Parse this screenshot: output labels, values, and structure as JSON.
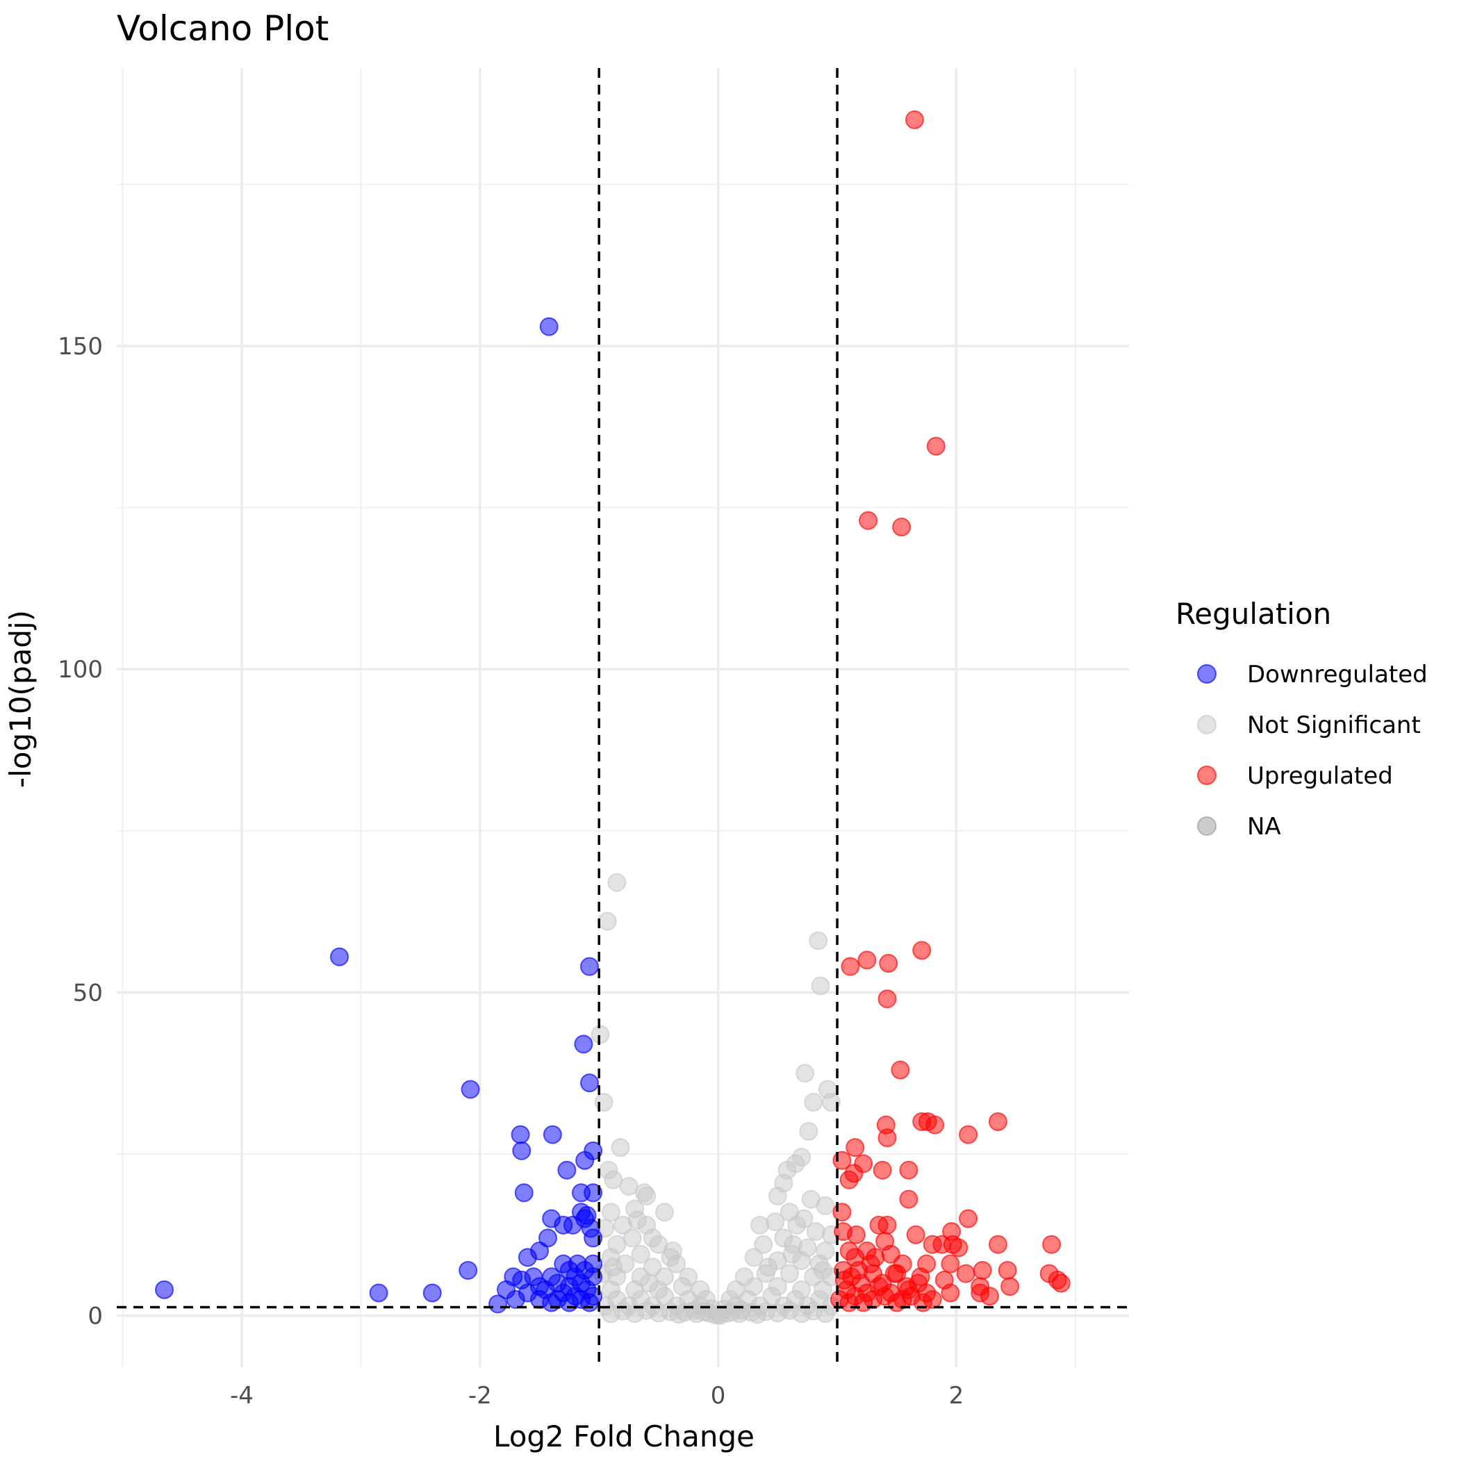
{
  "chart_data": {
    "type": "scatter",
    "title": "Volcano Plot",
    "xlabel": "Log2 Fold Change",
    "ylabel": "-log10(padj)",
    "xlim": [
      -5.05,
      3.45
    ],
    "ylim": [
      -8,
      193
    ],
    "x_ticks": [
      -4,
      -2,
      0,
      2
    ],
    "y_ticks": [
      0,
      50,
      100,
      150
    ],
    "grid": true,
    "vlines": [
      -1,
      1
    ],
    "hline": 1.3,
    "legend": {
      "title": "Regulation",
      "position": "right",
      "entries": [
        {
          "label": "Downregulated",
          "color": "#0000ff"
        },
        {
          "label": "Not Significant",
          "color": "#c8c8c8"
        },
        {
          "label": "Upregulated",
          "color": "#ff0000"
        },
        {
          "label": "NA",
          "color": "#999999"
        }
      ]
    },
    "series": [
      {
        "name": "Downregulated",
        "color": "#0000ff",
        "points": [
          [
            -1.42,
            153
          ],
          [
            -3.18,
            55.5
          ],
          [
            -1.08,
            54
          ],
          [
            -1.13,
            42
          ],
          [
            -1.08,
            36
          ],
          [
            -2.08,
            35
          ],
          [
            -1.66,
            28
          ],
          [
            -1.39,
            28
          ],
          [
            -1.65,
            25.5
          ],
          [
            -1.05,
            25.5
          ],
          [
            -1.12,
            24
          ],
          [
            -1.27,
            22.5
          ],
          [
            -1.63,
            19
          ],
          [
            -1.15,
            19
          ],
          [
            -1.05,
            19
          ],
          [
            -1.15,
            16
          ],
          [
            -1.1,
            15.5
          ],
          [
            -1.4,
            15
          ],
          [
            -1.12,
            15
          ],
          [
            -1.3,
            14
          ],
          [
            -1.22,
            14
          ],
          [
            -1.07,
            13.5
          ],
          [
            -1.43,
            12
          ],
          [
            -1.05,
            12
          ],
          [
            -1.5,
            10
          ],
          [
            -1.6,
            9
          ],
          [
            -1.3,
            8
          ],
          [
            -1.18,
            8
          ],
          [
            -1.05,
            8
          ],
          [
            -2.1,
            7
          ],
          [
            -1.25,
            7
          ],
          [
            -1.12,
            7
          ],
          [
            -1.72,
            6
          ],
          [
            -1.55,
            6
          ],
          [
            -1.4,
            6
          ],
          [
            -1.2,
            6
          ],
          [
            -1.05,
            6
          ],
          [
            -1.65,
            5.5
          ],
          [
            -1.35,
            5
          ],
          [
            -1.15,
            5
          ],
          [
            -1.5,
            4.5
          ],
          [
            -1.25,
            4.5
          ],
          [
            -4.65,
            4
          ],
          [
            -1.78,
            4
          ],
          [
            -1.45,
            4
          ],
          [
            -1.1,
            4
          ],
          [
            -1.6,
            3.5
          ],
          [
            -2.85,
            3.5
          ],
          [
            -2.4,
            3.5
          ],
          [
            -1.3,
            3.5
          ],
          [
            -1.2,
            3
          ],
          [
            -1.05,
            3
          ],
          [
            -1.7,
            2.5
          ],
          [
            -1.5,
            2.5
          ],
          [
            -1.35,
            2.5
          ],
          [
            -1.15,
            2.5
          ],
          [
            -1.85,
            1.8
          ],
          [
            -1.25,
            2
          ],
          [
            -1.08,
            2
          ],
          [
            -1.4,
            2
          ]
        ]
      },
      {
        "name": "Upregulated",
        "color": "#ff0000",
        "points": [
          [
            1.65,
            185
          ],
          [
            1.83,
            134.5
          ],
          [
            1.26,
            123
          ],
          [
            1.54,
            122
          ],
          [
            1.71,
            56.5
          ],
          [
            1.25,
            55
          ],
          [
            1.43,
            54.5
          ],
          [
            1.11,
            54
          ],
          [
            1.42,
            49
          ],
          [
            1.53,
            38
          ],
          [
            2.35,
            30
          ],
          [
            1.71,
            30
          ],
          [
            1.76,
            30
          ],
          [
            1.82,
            29.5
          ],
          [
            1.41,
            29.5
          ],
          [
            2.1,
            28
          ],
          [
            1.42,
            27.5
          ],
          [
            1.15,
            26
          ],
          [
            1.04,
            24
          ],
          [
            1.22,
            23.5
          ],
          [
            1.38,
            22.5
          ],
          [
            1.6,
            22.5
          ],
          [
            1.14,
            22
          ],
          [
            1.1,
            21
          ],
          [
            1.6,
            18
          ],
          [
            1.04,
            16
          ],
          [
            2.1,
            15
          ],
          [
            1.35,
            14
          ],
          [
            1.42,
            14
          ],
          [
            1.96,
            13
          ],
          [
            1.05,
            13
          ],
          [
            1.16,
            12.5
          ],
          [
            1.66,
            12.5
          ],
          [
            1.4,
            11.5
          ],
          [
            1.8,
            11
          ],
          [
            1.88,
            11
          ],
          [
            1.97,
            11
          ],
          [
            2.02,
            10.5
          ],
          [
            2.8,
            11
          ],
          [
            2.35,
            11
          ],
          [
            1.1,
            10
          ],
          [
            1.25,
            10
          ],
          [
            1.45,
            9.5
          ],
          [
            1.15,
            9
          ],
          [
            1.32,
            9
          ],
          [
            1.55,
            8
          ],
          [
            1.75,
            8
          ],
          [
            1.95,
            8
          ],
          [
            2.22,
            7
          ],
          [
            2.43,
            7
          ],
          [
            2.08,
            6.5
          ],
          [
            2.78,
            6.5
          ],
          [
            1.05,
            7
          ],
          [
            1.18,
            7
          ],
          [
            1.3,
            6.5
          ],
          [
            1.5,
            6.5
          ],
          [
            1.7,
            6
          ],
          [
            1.9,
            5.5
          ],
          [
            2.85,
            5.5
          ],
          [
            2.88,
            5
          ],
          [
            2.45,
            4.5
          ],
          [
            2.2,
            4.5
          ],
          [
            1.2,
            5
          ],
          [
            1.35,
            4.5
          ],
          [
            1.6,
            4
          ],
          [
            1.08,
            4
          ],
          [
            1.25,
            3.5
          ],
          [
            1.45,
            3.5
          ],
          [
            1.75,
            3.5
          ],
          [
            1.95,
            3.5
          ],
          [
            2.2,
            3.5
          ],
          [
            2.28,
            3
          ],
          [
            1.15,
            3
          ],
          [
            1.4,
            3
          ],
          [
            1.55,
            2.5
          ],
          [
            1.02,
            2.5
          ],
          [
            1.3,
            2.5
          ],
          [
            1.72,
            2
          ],
          [
            1.1,
            2
          ],
          [
            1.22,
            2
          ],
          [
            1.5,
            2
          ],
          [
            1.8,
            2.5
          ],
          [
            1.62,
            3
          ],
          [
            1.06,
            5.5
          ],
          [
            1.12,
            6
          ],
          [
            1.28,
            8
          ],
          [
            1.38,
            5
          ],
          [
            1.48,
            6.5
          ],
          [
            1.58,
            4.5
          ],
          [
            1.68,
            5
          ]
        ]
      },
      {
        "name": "Not Significant",
        "color": "#c8c8c8",
        "points": [
          [
            -0.85,
            67
          ],
          [
            -0.93,
            61
          ],
          [
            0.84,
            58
          ],
          [
            0.86,
            51
          ],
          [
            -0.99,
            43.5
          ],
          [
            0.73,
            37.5
          ],
          [
            0.92,
            35
          ],
          [
            -0.96,
            33
          ],
          [
            0.8,
            33
          ],
          [
            0.95,
            33
          ],
          [
            0.76,
            28.5
          ],
          [
            -0.82,
            26
          ],
          [
            0.7,
            24.5
          ],
          [
            0.65,
            23.5
          ],
          [
            0.58,
            22.5
          ],
          [
            0.55,
            20.5
          ],
          [
            -0.88,
            21
          ],
          [
            -0.75,
            20
          ],
          [
            -0.62,
            19
          ],
          [
            0.5,
            18.5
          ],
          [
            0.78,
            18
          ],
          [
            0.9,
            17
          ],
          [
            -0.9,
            16
          ],
          [
            -0.7,
            16.5
          ],
          [
            -0.45,
            16
          ],
          [
            0.6,
            16
          ],
          [
            0.72,
            15
          ],
          [
            0.35,
            14
          ],
          [
            0.48,
            14.5
          ],
          [
            0.66,
            14
          ],
          [
            -0.8,
            14
          ],
          [
            -0.6,
            14
          ],
          [
            -0.95,
            13.5
          ],
          [
            0.82,
            13
          ],
          [
            0.95,
            12.5
          ],
          [
            0.55,
            12
          ],
          [
            -0.72,
            12
          ],
          [
            -0.55,
            12
          ],
          [
            0.38,
            11
          ],
          [
            0.63,
            11
          ],
          [
            -0.85,
            11
          ],
          [
            -0.5,
            11
          ],
          [
            0.75,
            10.5
          ],
          [
            0.9,
            10
          ],
          [
            0.3,
            9
          ],
          [
            -0.4,
            9
          ],
          [
            -0.65,
            9.5
          ],
          [
            -0.9,
            9
          ],
          [
            0.5,
            8.5
          ],
          [
            0.7,
            8.5
          ],
          [
            0.85,
            8
          ],
          [
            -0.35,
            8
          ],
          [
            -0.55,
            7.5
          ],
          [
            -0.78,
            8
          ],
          [
            0.22,
            6
          ],
          [
            0.4,
            6.5
          ],
          [
            0.6,
            6.5
          ],
          [
            0.8,
            6
          ],
          [
            0.95,
            6
          ],
          [
            -0.25,
            6
          ],
          [
            -0.45,
            6
          ],
          [
            -0.65,
            6
          ],
          [
            -0.85,
            6
          ],
          [
            -0.97,
            6.5
          ],
          [
            0.15,
            4
          ],
          [
            0.3,
            4.5
          ],
          [
            0.5,
            4.5
          ],
          [
            0.7,
            4
          ],
          [
            0.88,
            4
          ],
          [
            -0.15,
            4
          ],
          [
            -0.3,
            4.5
          ],
          [
            -0.5,
            4
          ],
          [
            -0.7,
            4
          ],
          [
            -0.9,
            4
          ],
          [
            0.1,
            2.5
          ],
          [
            0.25,
            2.5
          ],
          [
            0.45,
            3
          ],
          [
            0.65,
            2.5
          ],
          [
            0.85,
            2.5
          ],
          [
            -0.1,
            2.5
          ],
          [
            -0.25,
            2.5
          ],
          [
            -0.45,
            3
          ],
          [
            -0.65,
            2.5
          ],
          [
            -0.85,
            2.5
          ],
          [
            0.05,
            1
          ],
          [
            0.15,
            1.5
          ],
          [
            0.35,
            1.5
          ],
          [
            0.55,
            1.5
          ],
          [
            0.75,
            1.5
          ],
          [
            0.95,
            1.5
          ],
          [
            -0.05,
            1
          ],
          [
            -0.15,
            1.5
          ],
          [
            -0.35,
            1.5
          ],
          [
            -0.55,
            1.5
          ],
          [
            -0.75,
            1.5
          ],
          [
            -0.95,
            1.5
          ],
          [
            0.0,
            0.2
          ],
          [
            0.08,
            0.4
          ],
          [
            -0.08,
            0.4
          ],
          [
            0.2,
            0.8
          ],
          [
            -0.2,
            0.8
          ],
          [
            0.4,
            0.6
          ],
          [
            -0.4,
            0.6
          ],
          [
            0.6,
            0.8
          ],
          [
            -0.6,
            0.8
          ],
          [
            0.8,
            0.7
          ],
          [
            -0.8,
            0.7
          ],
          [
            0.12,
            0.6
          ],
          [
            -0.12,
            0.6
          ],
          [
            0.28,
            0.5
          ],
          [
            -0.28,
            0.5
          ],
          [
            0.5,
            0.4
          ],
          [
            -0.5,
            0.4
          ],
          [
            0.7,
            0.3
          ],
          [
            -0.7,
            0.3
          ],
          [
            0.9,
            0.3
          ],
          [
            -0.9,
            0.3
          ],
          [
            0.02,
            0.05
          ],
          [
            -0.02,
            0.05
          ],
          [
            0.18,
            0.3
          ],
          [
            -0.18,
            0.3
          ],
          [
            0.33,
            0.2
          ],
          [
            -0.33,
            0.2
          ],
          [
            -0.6,
            18.5
          ],
          [
            -0.68,
            14.8
          ],
          [
            -0.92,
            22.5
          ],
          [
            0.42,
            7.5
          ],
          [
            -0.38,
            10
          ],
          [
            0.62,
            9.5
          ],
          [
            -0.58,
            5
          ],
          [
            0.88,
            7
          ],
          [
            -0.88,
            7.5
          ]
        ]
      }
    ]
  }
}
